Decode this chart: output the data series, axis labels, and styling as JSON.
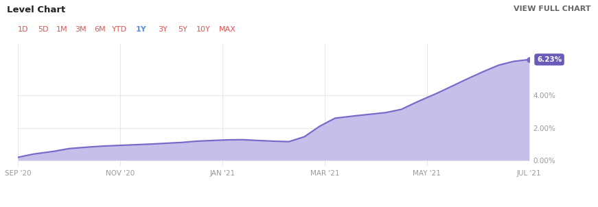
{
  "title_left": "Level Chart",
  "title_right": "VIEW FULL CHART",
  "tab_labels": [
    "1D",
    "5D",
    "1M",
    "3M",
    "6M",
    "YTD",
    "1Y",
    "3Y",
    "5Y",
    "10Y",
    "MAX"
  ],
  "active_tab_idx": 6,
  "x_tick_labels": [
    "SEP '20",
    "NOV '20",
    "JAN '21",
    "MAR '21",
    "MAY '21",
    "JUL '21"
  ],
  "y_tick_vals": [
    0.0,
    2.0,
    4.0
  ],
  "y_tick_labels": [
    "0.00%",
    "2.00%",
    "4.00%"
  ],
  "y_min": -0.35,
  "y_max": 7.2,
  "end_label": "6.23%",
  "line_color": "#7B68C8",
  "fill_color": "#C5BFEA",
  "background_color": "#ffffff",
  "grid_color": "#e8e8e8",
  "title_color": "#222222",
  "view_chart_color": "#666666",
  "tab_inactive_color": "#e05050",
  "tab_active_color": "#5B8FD8",
  "underline_color": "#3399ff",
  "end_label_bg": "#6B5BB8",
  "end_label_fg": "#ffffff",
  "divider_color": "#dddddd",
  "x_values": [
    0.0,
    0.03,
    0.07,
    0.1,
    0.14,
    0.17,
    0.2,
    0.23,
    0.26,
    0.29,
    0.32,
    0.35,
    0.38,
    0.41,
    0.44,
    0.47,
    0.5,
    0.53,
    0.56,
    0.59,
    0.62,
    0.66,
    0.69,
    0.72,
    0.75,
    0.78,
    0.82,
    0.85,
    0.88,
    0.91,
    0.94,
    0.97,
    1.0
  ],
  "y_values": [
    0.18,
    0.38,
    0.55,
    0.72,
    0.82,
    0.88,
    0.92,
    0.96,
    1.0,
    1.05,
    1.1,
    1.18,
    1.22,
    1.26,
    1.27,
    1.22,
    1.18,
    1.15,
    1.45,
    2.1,
    2.6,
    2.75,
    2.85,
    2.95,
    3.15,
    3.6,
    4.15,
    4.6,
    5.05,
    5.48,
    5.88,
    6.12,
    6.23
  ]
}
